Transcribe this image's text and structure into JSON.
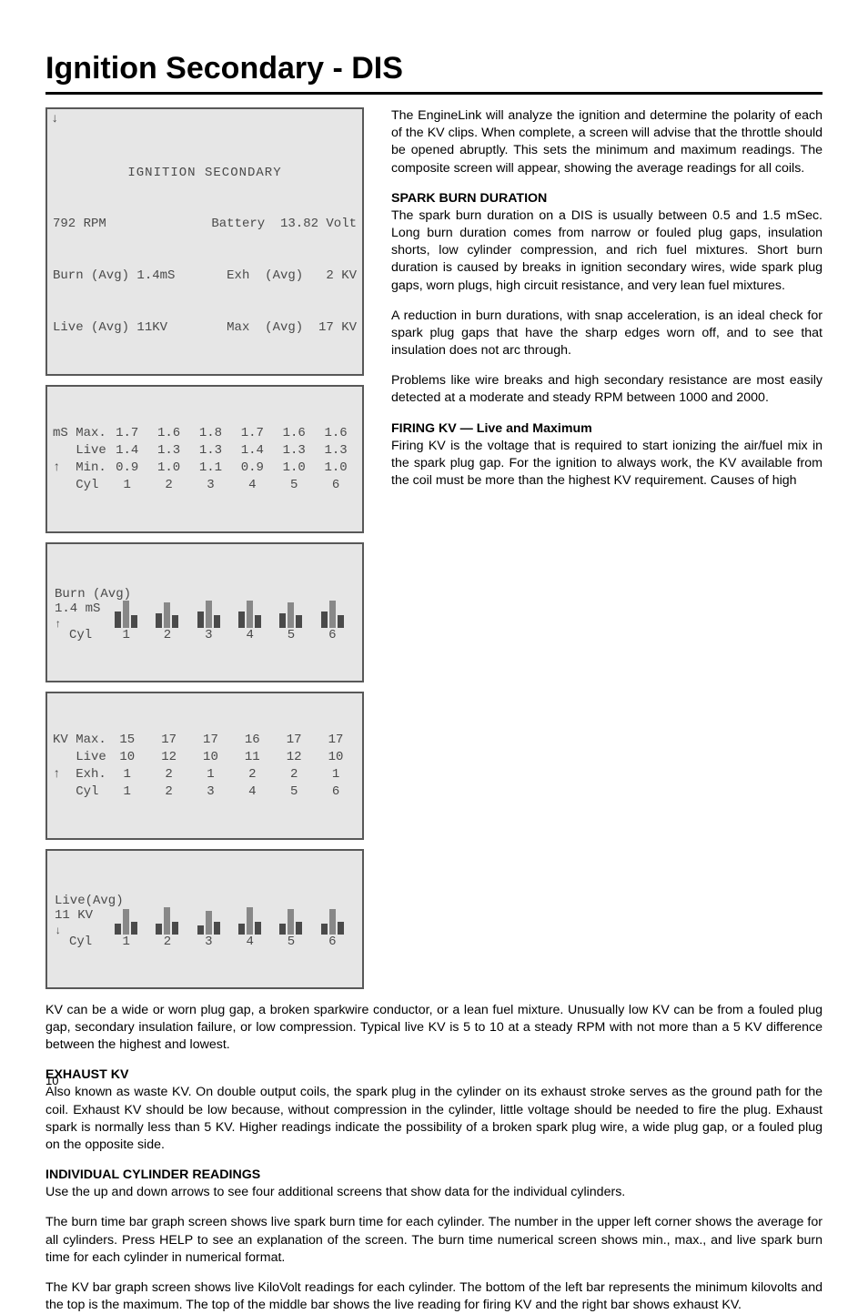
{
  "title": "Ignition Secondary - DIS",
  "page_number": "10",
  "lcd1": {
    "title": "IGNITION SECONDARY",
    "rpm": "792 RPM",
    "battery_label": "Battery",
    "battery_value": "13.82 Volt",
    "burn_label": "Burn (Avg)",
    "burn_value": "1.4mS",
    "exh_label": "Exh  (Avg)",
    "exh_value": "2 KV",
    "live_label": "Live (Avg)",
    "live_value": "11KV",
    "max_label": "Max  (Avg)",
    "max_value": "17 KV"
  },
  "ms_table": {
    "unit": "mS",
    "rows": [
      {
        "label": "Max.",
        "v": [
          "1.7",
          "1.6",
          "1.8",
          "1.7",
          "1.6",
          "1.6"
        ]
      },
      {
        "label": "Live",
        "v": [
          "1.4",
          "1.3",
          "1.3",
          "1.4",
          "1.3",
          "1.3"
        ]
      },
      {
        "label": "Min.",
        "v": [
          "0.9",
          "1.0",
          "1.1",
          "0.9",
          "1.0",
          "1.0"
        ]
      }
    ],
    "cyl_label": "Cyl",
    "cyls": [
      "1",
      "2",
      "3",
      "4",
      "5",
      "6"
    ]
  },
  "burn_bar": {
    "title": "Burn (Avg)",
    "value": "1.4 mS",
    "cyl_label": "Cyl",
    "cyls": [
      "1",
      "2",
      "3",
      "4",
      "5",
      "6"
    ],
    "bars": [
      {
        "a": 18,
        "b": 30,
        "c": 14
      },
      {
        "a": 16,
        "b": 28,
        "c": 14
      },
      {
        "a": 18,
        "b": 30,
        "c": 14
      },
      {
        "a": 18,
        "b": 30,
        "c": 14
      },
      {
        "a": 16,
        "b": 28,
        "c": 14
      },
      {
        "a": 18,
        "b": 30,
        "c": 14
      }
    ]
  },
  "kv_table": {
    "unit": "KV",
    "rows": [
      {
        "label": "Max.",
        "v": [
          "15",
          "17",
          "17",
          "16",
          "17",
          "17"
        ]
      },
      {
        "label": "Live",
        "v": [
          "10",
          "12",
          "10",
          "11",
          "12",
          "10"
        ]
      },
      {
        "label": "Exh.",
        "v": [
          "1",
          "2",
          "1",
          "2",
          "2",
          "1"
        ]
      }
    ],
    "cyl_label": "Cyl",
    "cyls": [
      "1",
      "2",
      "3",
      "4",
      "5",
      "6"
    ]
  },
  "live_bar": {
    "title": "Live(Avg)",
    "value": "11 KV",
    "cyl_label": "Cyl",
    "cyls": [
      "1",
      "2",
      "3",
      "4",
      "5",
      "6"
    ],
    "bars": [
      {
        "a": 12,
        "b": 28,
        "c": 14
      },
      {
        "a": 12,
        "b": 30,
        "c": 14
      },
      {
        "a": 10,
        "b": 26,
        "c": 14
      },
      {
        "a": 12,
        "b": 30,
        "c": 14
      },
      {
        "a": 12,
        "b": 28,
        "c": 14
      },
      {
        "a": 12,
        "b": 28,
        "c": 14
      }
    ]
  },
  "text": {
    "p1": "The EngineLink will analyze the ignition and determine the polarity of each of the KV clips. When complete, a screen will advise that the throttle should be opened abruptly. This sets the minimum and maximum readings. The composite screen will appear, showing the average readings for all coils.",
    "h1": "SPARK  BURN  DURATION",
    "p2": "The spark burn duration on a DIS is usually between 0.5 and 1.5 mSec. Long burn duration comes from narrow or fouled plug gaps, insulation shorts, low cylinder compression, and rich fuel mixtures. Short burn duration is caused by breaks in ignition secondary wires, wide spark plug gaps, worn plugs, high circuit resistance, and very lean fuel mixtures.",
    "p3": "A reduction in burn durations, with snap acceleration, is an ideal check for spark plug gaps that have the sharp edges worn off, and to see that insulation does not arc through.",
    "p4": "Problems like wire breaks and high secondary resistance are most easily detected at a moderate and steady RPM between 1000 and 2000.",
    "h2": "FIRING  KV  —  Live and Maximum",
    "p5": "Firing KV is the voltage that is required to start ionizing the air/fuel mix in the spark plug gap. For the ignition to always work, the KV available from the coil must be more than the highest KV requirement. Causes of high",
    "p5b": "KV can be a wide or worn plug gap, a broken sparkwire conductor, or a lean fuel mixture. Unusually low KV can be from a fouled plug gap, secondary insulation failure, or low compression.  Typical live KV is 5 to 10 at a steady RPM with not more than a 5 KV difference between the highest and lowest.",
    "h3": "EXHAUST  KV",
    "p6": "Also known as waste KV. On double output coils, the spark plug in the cylinder on its exhaust stroke serves as the ground path for the coil. Exhaust KV should be low because, without compression in the cylinder, little voltage should be needed to fire the plug. Exhaust spark is normally less than 5 KV. Higher readings indicate the possibility of a broken spark plug wire, a wide plug gap, or a fouled plug on the opposite side.",
    "h4": "INDIVIDUAL  CYLINDER  READINGS",
    "p7": "Use the up and down arrows to see four additional screens that show data for the individual cylinders.",
    "p8": "The burn time bar graph screen shows live spark burn time for each cylinder. The number in the upper left corner shows the average for all cylinders. Press HELP to see an explanation of the screen.  The burn time numerical screen shows min., max., and live spark burn time for each cylinder in numerical format.",
    "p9": "The KV bar graph screen shows live KiloVolt readings for each cylinder.  The bottom of the left bar represents the minimum kilovolts and the top is the maximum. The top of the middle bar shows the live reading for firing KV and the right bar shows exhaust KV."
  }
}
